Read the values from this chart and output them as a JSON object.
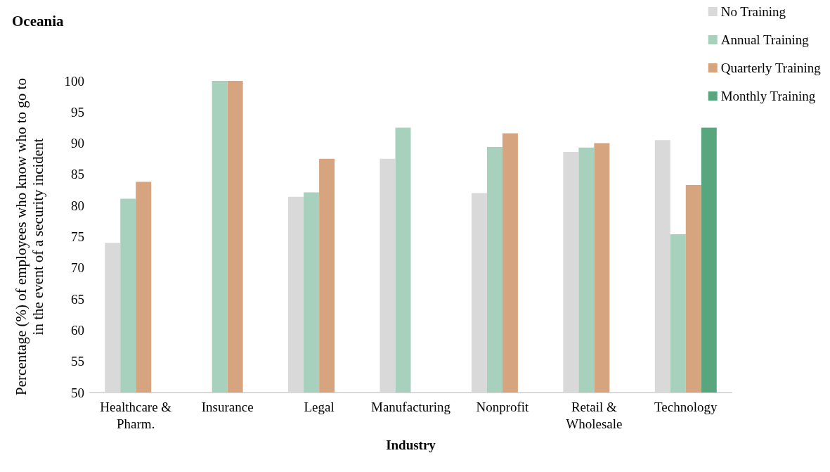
{
  "chart_data": {
    "type": "bar",
    "title": "Oceania",
    "xlabel": "Industry",
    "ylabel": "Percentage (%) of employees who know who to go to\nin the event of a security incident",
    "categories": [
      "Healthcare &\nPharm.",
      "Insurance",
      "Legal",
      "Manufacturing",
      "Nonprofit",
      "Retail &\nWholesale",
      "Technology"
    ],
    "series": [
      {
        "name": "No Training",
        "color": "#d9d9d9",
        "values": [
          74,
          null,
          81.4,
          87.5,
          82,
          88.6,
          90.5
        ]
      },
      {
        "name": "Annual Training",
        "color": "#a8d1bd",
        "values": [
          81.1,
          100,
          82.1,
          92.5,
          89.4,
          89.3,
          75.4
        ]
      },
      {
        "name": "Quarterly Training",
        "color": "#d6a580",
        "values": [
          83.8,
          100,
          87.5,
          null,
          91.6,
          90,
          83.3
        ]
      },
      {
        "name": "Monthly Training",
        "color": "#58a67e",
        "values": [
          null,
          null,
          null,
          null,
          null,
          null,
          92.5
        ]
      }
    ],
    "ylim": [
      50,
      100
    ],
    "yticks": [
      50,
      55,
      60,
      65,
      70,
      75,
      80,
      85,
      90,
      95,
      100
    ],
    "grid": false,
    "legend": "top right"
  }
}
